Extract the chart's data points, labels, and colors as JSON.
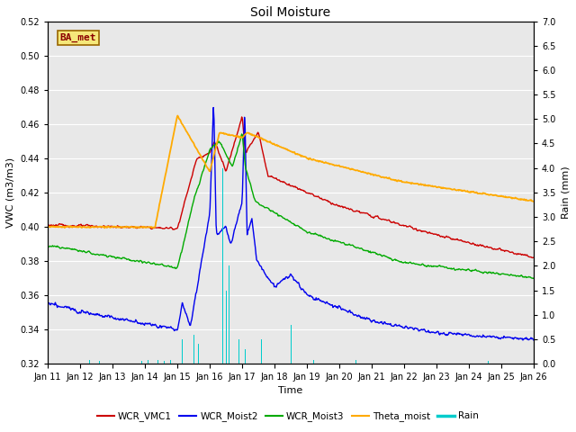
{
  "title": "Soil Moisture",
  "xlabel": "Time",
  "ylabel_left": "VWC (m3/m3)",
  "ylabel_right": "Rain (mm)",
  "ylim_left": [
    0.32,
    0.52
  ],
  "ylim_right": [
    0.0,
    7.0
  ],
  "yticks_left": [
    0.32,
    0.34,
    0.36,
    0.38,
    0.4,
    0.42,
    0.44,
    0.46,
    0.48,
    0.5,
    0.52
  ],
  "yticks_right": [
    0.0,
    0.5,
    1.0,
    1.5,
    2.0,
    2.5,
    3.0,
    3.5,
    4.0,
    4.5,
    5.0,
    5.5,
    6.0,
    6.5,
    7.0
  ],
  "xtick_labels": [
    "Jan 11",
    "Jan 12",
    "Jan 13",
    "Jan 14",
    "Jan 15",
    "Jan 16",
    "Jan 17",
    "Jan 18",
    "Jan 19",
    "Jan 20",
    "Jan 21",
    "Jan 22",
    "Jan 23",
    "Jan 24",
    "Jan 25",
    "Jan 26"
  ],
  "colors": {
    "WCR_VMC1": "#cc0000",
    "WCR_Moist2": "#0000ee",
    "WCR_Moist3": "#00aa00",
    "Theta_moist": "#ffaa00",
    "Rain": "#00cccc"
  },
  "legend_label": "BA_met",
  "plot_bg_color": "#e8e8e8"
}
